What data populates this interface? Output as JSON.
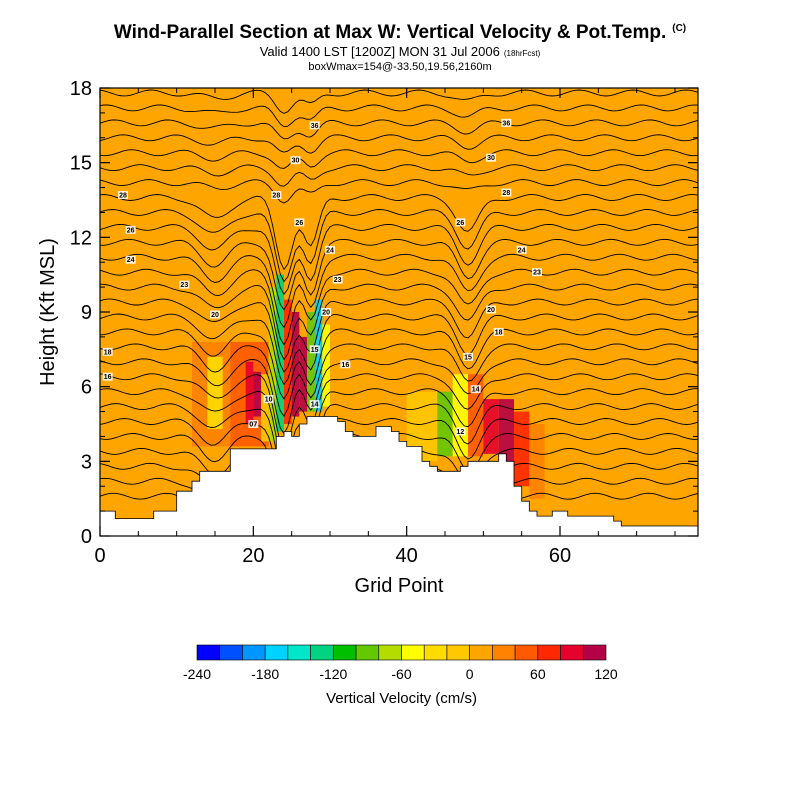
{
  "header": {
    "title": "Wind-Parallel Section at Max W: Vertical Velocity & Pot.Temp.",
    "copyright_mark": "(C)",
    "valid_line": "Valid 1400 LST [1200Z] MON 31 Jul 2006",
    "forecast_note": "(18hrFcst)",
    "box_line": "boxWmax=154@-33.50,19.56,2160m"
  },
  "chart_data": {
    "type": "heatmap",
    "title": "Wind-Parallel Section at Max W: Vertical Velocity & Pot.Temp.",
    "xlabel": "Grid Point",
    "ylabel": "Height (Kft MSL)",
    "xlim": [
      0,
      78
    ],
    "ylim": [
      0,
      18
    ],
    "xticks": [
      "0",
      "20",
      "40",
      "60"
    ],
    "xtick_values": [
      0,
      20,
      40,
      60
    ],
    "yticks": [
      "0",
      "3",
      "6",
      "9",
      "12",
      "15",
      "18"
    ],
    "ytick_values": [
      0,
      3,
      6,
      9,
      12,
      15,
      18
    ],
    "colorbar": {
      "label": "Vertical Velocity (cm/s)",
      "colors": [
        "#0000ff",
        "#0050ff",
        "#0096ff",
        "#00d2ff",
        "#00e6c8",
        "#00d282",
        "#00be00",
        "#64c800",
        "#b4dc00",
        "#ffff00",
        "#ffdc00",
        "#ffc800",
        "#ffa500",
        "#ff8200",
        "#ff5a00",
        "#ff2800",
        "#e6002d",
        "#b40046"
      ],
      "tick_labels": [
        "-240",
        "-180",
        "-120",
        "-60",
        "0",
        "60",
        "120"
      ],
      "tick_values": [
        -240,
        -180,
        -120,
        -60,
        0,
        60,
        120
      ],
      "min": -240,
      "step": 20
    },
    "terrain_kft": [
      [
        0,
        1.0
      ],
      [
        1,
        1.0
      ],
      [
        2,
        0.7
      ],
      [
        6,
        0.7
      ],
      [
        7,
        1.0
      ],
      [
        9,
        1.0
      ],
      [
        10,
        1.8
      ],
      [
        11,
        1.8
      ],
      [
        12,
        2.2
      ],
      [
        13,
        2.6
      ],
      [
        14,
        2.6
      ],
      [
        15,
        2.6
      ],
      [
        16,
        2.6
      ],
      [
        17,
        3.5
      ],
      [
        18,
        3.5
      ],
      [
        20,
        3.5
      ],
      [
        21,
        3.5
      ],
      [
        22,
        3.5
      ],
      [
        23,
        4.0
      ],
      [
        24,
        4.2
      ],
      [
        25,
        4.0
      ],
      [
        26,
        4.5
      ],
      [
        27,
        4.8
      ],
      [
        28,
        4.8
      ],
      [
        30,
        4.8
      ],
      [
        31,
        4.6
      ],
      [
        32,
        4.2
      ],
      [
        33,
        4.0
      ],
      [
        35,
        4.0
      ],
      [
        36,
        4.4
      ],
      [
        37,
        4.4
      ],
      [
        38,
        4.2
      ],
      [
        39,
        3.8
      ],
      [
        40,
        3.6
      ],
      [
        41,
        3.6
      ],
      [
        42,
        3.0
      ],
      [
        43,
        2.8
      ],
      [
        44,
        2.6
      ],
      [
        45,
        2.6
      ],
      [
        46,
        2.6
      ],
      [
        47,
        2.8
      ],
      [
        48,
        3.0
      ],
      [
        50,
        3.0
      ],
      [
        52,
        3.3
      ],
      [
        53,
        3.0
      ],
      [
        54,
        2.0
      ],
      [
        55,
        1.4
      ],
      [
        56,
        1.0
      ],
      [
        57,
        0.8
      ],
      [
        58,
        0.8
      ],
      [
        59,
        1.0
      ],
      [
        60,
        1.0
      ],
      [
        61,
        0.8
      ],
      [
        66,
        0.8
      ],
      [
        67,
        0.6
      ],
      [
        68,
        0.4
      ],
      [
        74,
        0.4
      ],
      [
        78,
        0.4
      ]
    ],
    "velocity_cells": [
      {
        "x0": 12,
        "x1": 17,
        "z0": 3.6,
        "z1": 7.8,
        "w": 20
      },
      {
        "x0": 14,
        "x1": 16,
        "z0": 4.3,
        "z1": 7.2,
        "w": -30
      },
      {
        "x0": 17,
        "x1": 22,
        "z0": 3.6,
        "z1": 7.8,
        "w": 40
      },
      {
        "x0": 19,
        "x1": 20,
        "z0": 4.5,
        "z1": 7.0,
        "w": 80
      },
      {
        "x0": 20,
        "x1": 21,
        "z0": 4.8,
        "z1": 6.6,
        "w": 130
      },
      {
        "x0": 21,
        "x1": 22,
        "z0": 3.8,
        "z1": 6.5,
        "w": -20
      },
      {
        "x0": 22,
        "x1": 23,
        "z0": 3.8,
        "z1": 10.0,
        "w": -70
      },
      {
        "x0": 23,
        "x1": 24,
        "z0": 4.2,
        "z1": 10.5,
        "w": -140
      },
      {
        "x0": 24,
        "x1": 25,
        "z0": 4.5,
        "z1": 9.5,
        "w": 60
      },
      {
        "x0": 25,
        "x1": 26,
        "z0": 4.8,
        "z1": 9.0,
        "w": 110
      },
      {
        "x0": 26,
        "x1": 27,
        "z0": 5.0,
        "z1": 8.0,
        "w": 140
      },
      {
        "x0": 27,
        "x1": 28,
        "z0": 5.0,
        "z1": 9.0,
        "w": -100
      },
      {
        "x0": 28,
        "x1": 29,
        "z0": 5.0,
        "z1": 9.5,
        "w": -180
      },
      {
        "x0": 29,
        "x1": 30,
        "z0": 5.2,
        "z1": 8.5,
        "w": -60
      },
      {
        "x0": 30,
        "x1": 35,
        "z0": 5.0,
        "z1": 7.0,
        "w": 15
      },
      {
        "x0": 40,
        "x1": 44,
        "z0": 3.0,
        "z1": 5.8,
        "w": -20
      },
      {
        "x0": 44,
        "x1": 46,
        "z0": 3.2,
        "z1": 5.8,
        "w": -90
      },
      {
        "x0": 46,
        "x1": 48,
        "z0": 3.2,
        "z1": 6.5,
        "w": -60
      },
      {
        "x0": 48,
        "x1": 50,
        "z0": 3.2,
        "z1": 6.5,
        "w": 40
      },
      {
        "x0": 50,
        "x1": 52,
        "z0": 3.3,
        "z1": 5.5,
        "w": 90
      },
      {
        "x0": 52,
        "x1": 54,
        "z0": 2.5,
        "z1": 5.5,
        "w": 110
      },
      {
        "x0": 54,
        "x1": 56,
        "z0": 2.0,
        "z1": 5.0,
        "w": 70
      },
      {
        "x0": 56,
        "x1": 58,
        "z0": 1.5,
        "z1": 4.5,
        "w": 30
      },
      {
        "x0": 60,
        "x1": 72,
        "z0": 1.5,
        "z1": 4.5,
        "w": 5
      }
    ],
    "theta_contours": {
      "levels_z_kft": [
        1.6,
        2.2,
        2.8,
        3.4,
        4.0,
        4.6,
        5.2,
        5.8,
        6.4,
        7.0,
        7.6,
        8.2,
        8.8,
        9.4,
        10.0,
        10.6,
        11.2,
        11.8,
        12.4,
        13.0,
        13.6,
        14.2,
        14.8,
        15.4,
        16.0,
        16.6,
        17.2,
        17.8
      ],
      "perturbations": [
        {
          "x": 15,
          "amp": 0.9,
          "width": 2.5
        },
        {
          "x": 24,
          "amp": 2.8,
          "width": 1.6
        },
        {
          "x": 27.5,
          "amp": 2.0,
          "width": 1.4
        },
        {
          "x": 48,
          "amp": 1.4,
          "width": 2.0
        }
      ]
    },
    "contour_labels": [
      {
        "text": "36",
        "x": 28,
        "z": 16.5
      },
      {
        "text": "36",
        "x": 53,
        "z": 16.6
      },
      {
        "text": "30",
        "x": 25.5,
        "z": 15.1
      },
      {
        "text": "30",
        "x": 51,
        "z": 15.2
      },
      {
        "text": "28",
        "x": 3,
        "z": 13.7
      },
      {
        "text": "28",
        "x": 23,
        "z": 13.7
      },
      {
        "text": "28",
        "x": 53,
        "z": 13.8
      },
      {
        "text": "26",
        "x": 26,
        "z": 12.6
      },
      {
        "text": "26",
        "x": 47,
        "z": 12.6
      },
      {
        "text": "26",
        "x": 4,
        "z": 12.3
      },
      {
        "text": "24",
        "x": 30,
        "z": 11.5
      },
      {
        "text": "24",
        "x": 55,
        "z": 11.5
      },
      {
        "text": "24",
        "x": 4,
        "z": 11.1
      },
      {
        "text": "23",
        "x": 31,
        "z": 10.3
      },
      {
        "text": "23",
        "x": 57,
        "z": 10.6
      },
      {
        "text": "23",
        "x": 11,
        "z": 10.1
      },
      {
        "text": "20",
        "x": 15,
        "z": 8.9
      },
      {
        "text": "20",
        "x": 29.5,
        "z": 9.0
      },
      {
        "text": "20",
        "x": 51,
        "z": 9.1
      },
      {
        "text": "18",
        "x": 52,
        "z": 8.2
      },
      {
        "text": "18",
        "x": 1,
        "z": 7.4
      },
      {
        "text": "16",
        "x": 1,
        "z": 6.4
      },
      {
        "text": "16",
        "x": 32,
        "z": 6.9
      },
      {
        "text": "15",
        "x": 28,
        "z": 7.5
      },
      {
        "text": "15",
        "x": 48,
        "z": 7.2
      },
      {
        "text": "14",
        "x": 49,
        "z": 5.9
      },
      {
        "text": "14",
        "x": 28,
        "z": 5.3
      },
      {
        "text": "12",
        "x": 47,
        "z": 4.2
      },
      {
        "text": "10",
        "x": 22,
        "z": 5.5
      },
      {
        "text": "07",
        "x": 20,
        "z": 4.5
      }
    ]
  }
}
